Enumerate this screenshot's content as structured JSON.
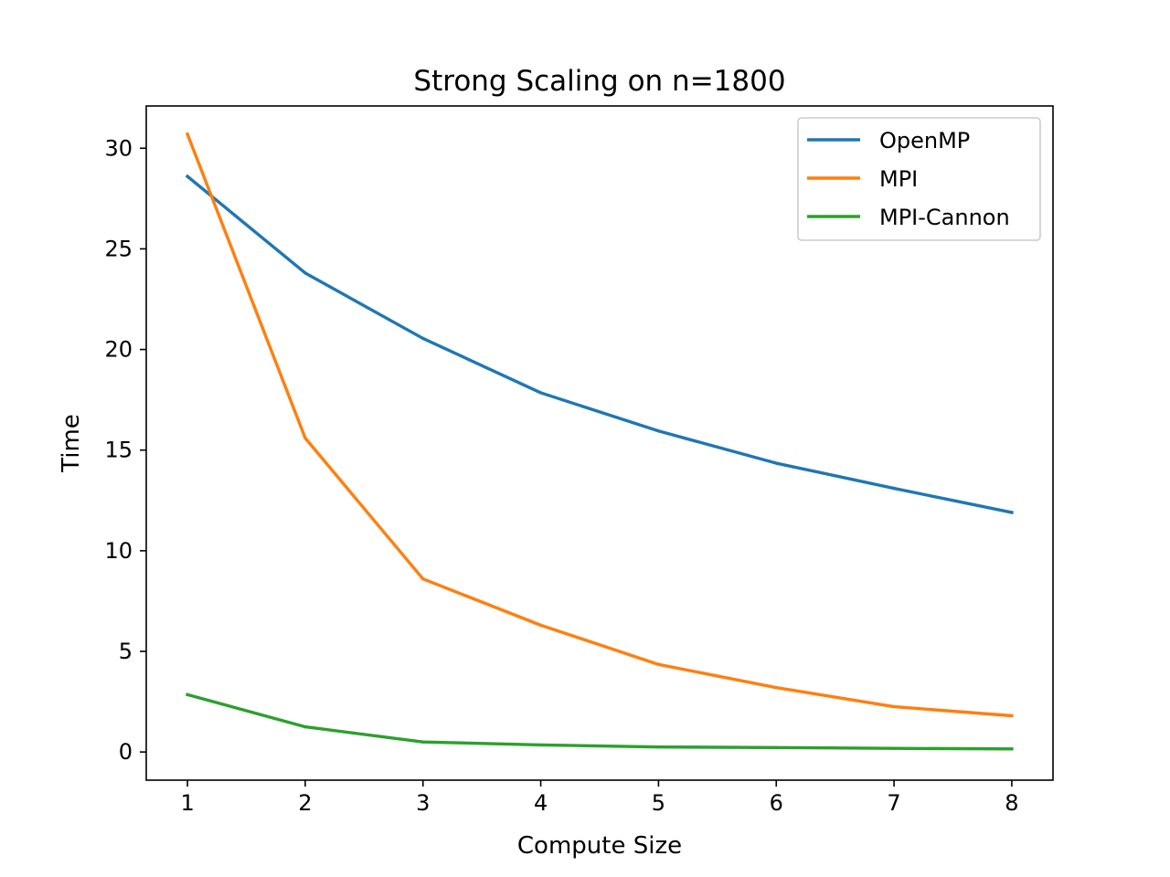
{
  "chart_data": {
    "type": "line",
    "title": "Strong Scaling on n=1800",
    "xlabel": "Compute Size",
    "ylabel": "Time",
    "x": [
      1,
      2,
      3,
      4,
      5,
      6,
      7,
      8
    ],
    "xticks": [
      1,
      2,
      3,
      4,
      5,
      6,
      7,
      8
    ],
    "yticks": [
      0,
      5,
      10,
      15,
      20,
      25,
      30
    ],
    "xlim": [
      0.65,
      8.35
    ],
    "ylim": [
      -1.4,
      32.1
    ],
    "grid": false,
    "legend_position": "top-right",
    "series": [
      {
        "name": "OpenMP",
        "color": "#1f77b4",
        "values": [
          28.6,
          23.8,
          20.55,
          17.85,
          15.95,
          14.35,
          13.1,
          11.9
        ]
      },
      {
        "name": "MPI",
        "color": "#ff7f0e",
        "values": [
          30.7,
          15.6,
          8.6,
          6.3,
          4.35,
          3.2,
          2.25,
          1.8
        ]
      },
      {
        "name": "MPI-Cannon",
        "color": "#2ca02c",
        "values": [
          2.85,
          1.25,
          0.5,
          0.35,
          0.25,
          0.22,
          0.18,
          0.15
        ]
      }
    ]
  }
}
